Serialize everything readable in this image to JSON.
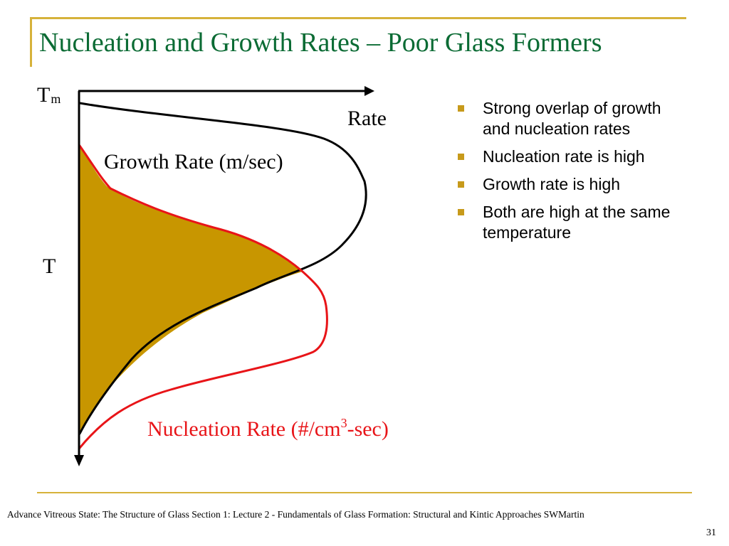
{
  "title": "Nucleation and Growth Rates – Poor Glass Formers",
  "diagram": {
    "y_label_top": "T",
    "y_label_top_sub": "m",
    "y_label_mid": "T",
    "x_label": "Rate",
    "growth_label": "Growth Rate (m/sec)",
    "nucleation_label_prefix": "Nucleation Rate (#/cm",
    "nucleation_label_sup": "3",
    "nucleation_label_suffix": "-sec)",
    "colors": {
      "axes": "#000000",
      "growth_curve": "#000000",
      "nucleation_curve": "#E81418",
      "overlap_fill": "#C89600"
    }
  },
  "bullets": [
    "Strong overlap of growth\n and nucleation rates",
    "Nucleation rate is high",
    "Growth rate is high",
    "Both are high at the same\n temperature"
  ],
  "bullet_color": "#C79A1B",
  "footer": "Advance Vitreous State: The Structure of Glass Section 1: Lecture 2 - Fundamentals of Glass Formation: Structural and Kintic Approaches SWMartin",
  "page_number": "31"
}
